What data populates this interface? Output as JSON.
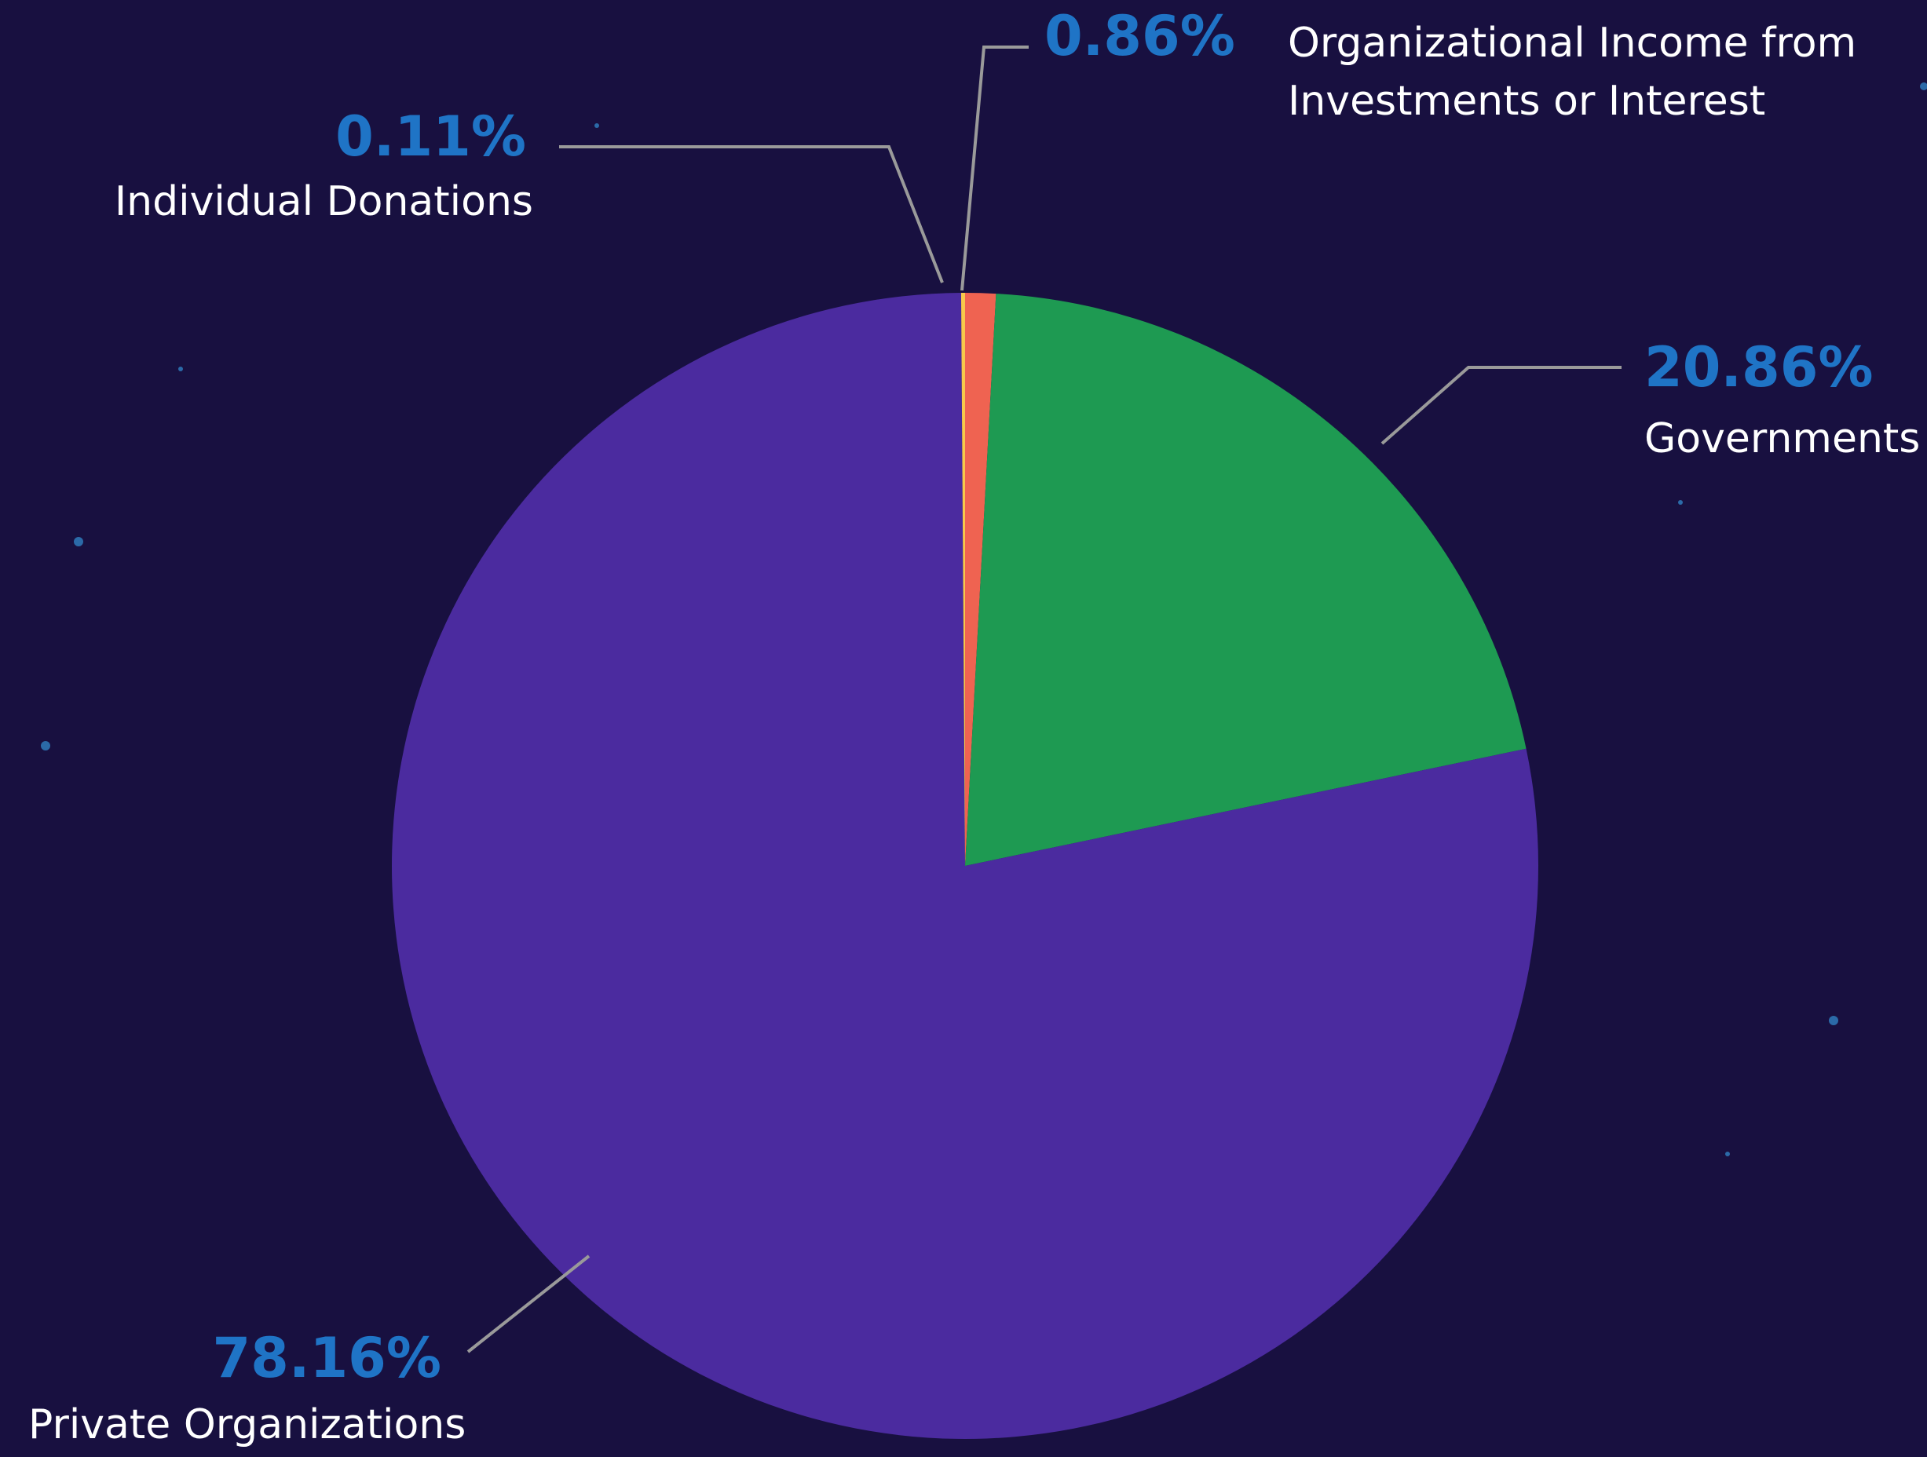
{
  "chart_data": {
    "type": "pie",
    "categories": [
      "Organizational Income from Investments or Interest",
      "Governments",
      "Private Organizations",
      "Individual Donations"
    ],
    "values": [
      0.86,
      20.86,
      78.16,
      0.11
    ],
    "value_labels": [
      "0.86%",
      "20.86%",
      "78.16%",
      "0.11%"
    ],
    "colors": [
      "#ef6351",
      "#1e9a52",
      "#4b2b9f",
      "#f7c94b"
    ]
  }
}
